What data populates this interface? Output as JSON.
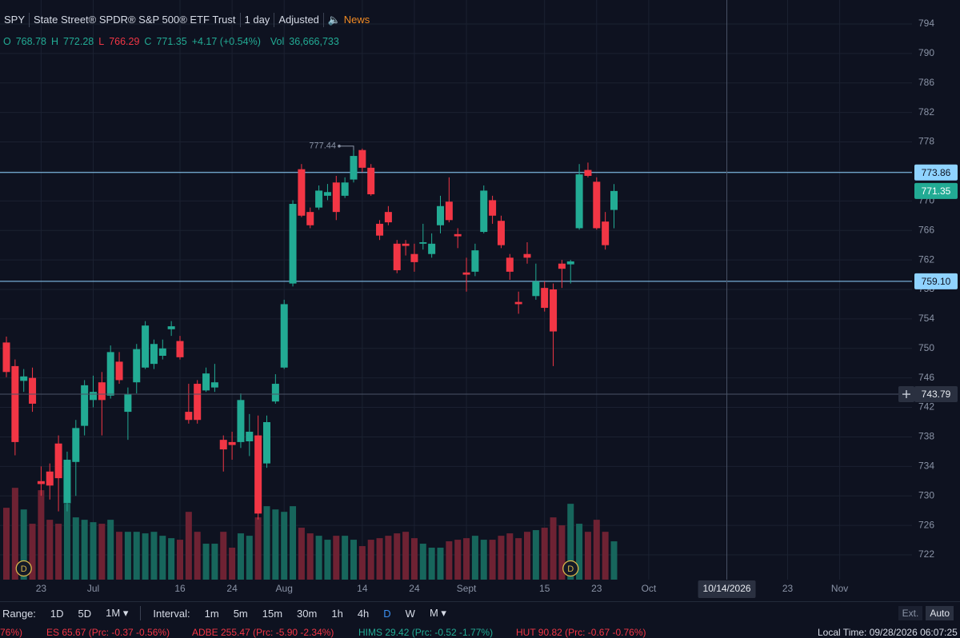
{
  "header": {
    "symbol": "SPY",
    "name": "State Street® SPDR® S&P 500® ETF Trust",
    "interval": "1 day",
    "adjustment": "Adjusted",
    "news": "News",
    "o": "O",
    "h": "H",
    "l": "L",
    "c": "C",
    "change": "+4.17 (+0.54%)",
    "vol": "Vol",
    "volume_label": "36,666,733"
  },
  "chart_data": {
    "type": "candlestick",
    "categories": [
      null,
      null,
      null,
      null,
      "23",
      null,
      null,
      null,
      null,
      null,
      "Jul",
      null,
      null,
      null,
      null,
      null,
      null,
      null,
      null,
      null,
      "16",
      null,
      null,
      null,
      null,
      null,
      "24",
      null,
      null,
      null,
      null,
      null,
      "Aug",
      null,
      null,
      null,
      null,
      null,
      null,
      null,
      null,
      "14",
      null,
      null,
      null,
      null,
      null,
      "24",
      null,
      null,
      null,
      null,
      null,
      "Sept",
      null,
      null,
      null,
      null,
      null,
      null,
      null,
      null,
      "15",
      null,
      null,
      null,
      null,
      null,
      "23",
      null,
      null,
      null,
      null,
      null,
      "Oct",
      null,
      null,
      null,
      null,
      null,
      null,
      null,
      null,
      "10/14/2026",
      null,
      null,
      null,
      null,
      null,
      null,
      "23",
      null,
      null,
      null,
      null,
      null,
      "Nov",
      null,
      null,
      null,
      null,
      null,
      null,
      null
    ],
    "open": [
      750.8,
      747.6,
      745.6,
      746.0,
      732.0,
      733.3,
      737.1,
      729.0,
      734.6,
      739.5,
      743.0,
      745.4,
      743.6,
      748.2,
      741.4,
      745.4,
      747.4,
      747.9,
      749.0,
      752.6,
      751.0,
      741.4,
      745.2,
      744.3,
      744.7,
      737.6,
      737.3,
      737.3,
      737.4,
      738.2,
      734.4,
      742.8,
      747.4,
      758.8,
      774.3,
      768.5,
      769.1,
      770.7,
      772.5,
      770.7,
      772.9,
      776.9,
      774.5,
      766.9,
      768.5,
      764.2,
      764.2,
      762.8,
      764.2,
      762.8,
      766.7,
      769.9,
      765.5,
      760.3,
      760.4,
      765.8,
      770.1,
      767.3,
      762.3,
      756.3,
      762.8,
      757.1,
      758.2,
      758.0,
      761.5,
      761.4,
      766.3,
      774.2,
      772.6,
      767.2,
      768.78,
      null,
      null,
      null,
      null,
      null,
      null,
      null,
      null,
      null,
      null,
      null,
      null,
      null,
      null,
      null,
      null,
      null,
      null,
      null,
      null,
      null,
      null,
      null,
      null,
      null,
      null,
      null,
      null,
      null,
      null,
      null,
      null,
      null
    ],
    "high": [
      751.6,
      748.5,
      747.2,
      747.4,
      734.0,
      734.4,
      738.2,
      736.0,
      740.3,
      745.7,
      746.3,
      746.8,
      750.4,
      749.5,
      744.7,
      750.6,
      753.7,
      751.2,
      751.2,
      753.7,
      751.7,
      745.2,
      745.7,
      747.4,
      747.9,
      738.2,
      738.7,
      743.9,
      741.1,
      740.9,
      740.9,
      746.5,
      756.6,
      770.1,
      775.0,
      769.1,
      772.1,
      772.3,
      773.4,
      773.2,
      777.44,
      777.1,
      775.0,
      767.4,
      769.3,
      764.7,
      764.7,
      764.2,
      766.9,
      765.6,
      770.7,
      773.2,
      766.3,
      762.3,
      764.2,
      772.1,
      770.7,
      768.0,
      762.8,
      757.7,
      764.4,
      761.5,
      759.1,
      758.8,
      762.0,
      762.0,
      775.0,
      775.2,
      773.2,
      768.5,
      772.28,
      null,
      null,
      null,
      null,
      null,
      null,
      null,
      null,
      null,
      null,
      null,
      null,
      null,
      null,
      null,
      null,
      null,
      null,
      null,
      null,
      null,
      null,
      null,
      null,
      null,
      null,
      null,
      null,
      null,
      null,
      null,
      null,
      null
    ],
    "low": [
      746.1,
      735.5,
      744.1,
      741.4,
      730.0,
      729.5,
      727.9,
      727.9,
      730.0,
      738.2,
      742.0,
      738.2,
      743.2,
      745.2,
      737.6,
      743.9,
      747.2,
      747.2,
      748.5,
      751.7,
      748.5,
      739.8,
      739.8,
      744.1,
      744.1,
      733.3,
      734.9,
      736.5,
      735.4,
      726.8,
      733.8,
      742.5,
      747.2,
      758.4,
      767.8,
      766.3,
      768.8,
      770.1,
      767.4,
      770.4,
      772.5,
      773.9,
      770.7,
      764.7,
      766.7,
      760.2,
      762.6,
      760.4,
      763.4,
      762.3,
      765.6,
      767.1,
      763.6,
      757.7,
      759.8,
      765.6,
      766.9,
      763.6,
      759.3,
      754.7,
      761.5,
      756.6,
      755.0,
      747.6,
      758.2,
      758.8,
      766.1,
      773.2,
      766.1,
      763.4,
      766.29,
      null,
      null,
      null,
      null,
      null,
      null,
      null,
      null,
      null,
      null,
      null,
      null,
      null,
      null,
      null,
      null,
      null,
      null,
      null,
      null,
      null,
      null,
      null,
      null,
      null,
      null,
      null,
      null,
      null,
      null,
      null,
      null,
      null
    ],
    "close": [
      746.8,
      737.3,
      746.2,
      742.5,
      731.6,
      731.4,
      732.4,
      734.9,
      739.2,
      745.0,
      744.1,
      743.0,
      749.5,
      745.7,
      743.8,
      749.9,
      753.1,
      750.6,
      750.0,
      753.0,
      748.8,
      740.3,
      740.3,
      746.6,
      745.4,
      736.3,
      736.9,
      743.0,
      738.7,
      727.6,
      740.0,
      745.2,
      756.0,
      769.6,
      768.0,
      766.7,
      771.4,
      771.2,
      768.5,
      772.5,
      776.1,
      774.5,
      770.9,
      765.3,
      767.1,
      760.6,
      763.9,
      761.7,
      764.4,
      764.2,
      769.3,
      767.4,
      765.2,
      760.0,
      763.3,
      771.4,
      768.0,
      764.0,
      760.4,
      756.0,
      762.3,
      759.1,
      755.5,
      752.3,
      760.8,
      761.8,
      773.6,
      773.4,
      766.3,
      764.0,
      771.35,
      null,
      null,
      null,
      null,
      null,
      null,
      null,
      null,
      null,
      null,
      null,
      null,
      null,
      null,
      null,
      null,
      null,
      null,
      null,
      null,
      null,
      null,
      null,
      null,
      null,
      null,
      null,
      null,
      null,
      null,
      null,
      null,
      null
    ],
    "volume": [
      68800000,
      87900000,
      67200000,
      53500000,
      85600000,
      57300000,
      53500000,
      72600000,
      59600000,
      57300000,
      55000000,
      53500000,
      57300000,
      45800000,
      45800000,
      45800000,
      44300000,
      45800000,
      42000000,
      39700000,
      38200000,
      64900000,
      45800000,
      34400000,
      34400000,
      45800000,
      30600000,
      44300000,
      42000000,
      59600000,
      70300000,
      67200000,
      64900000,
      70300000,
      49700000,
      44300000,
      42000000,
      38200000,
      42000000,
      42000000,
      38200000,
      32100000,
      38200000,
      39700000,
      42000000,
      44300000,
      45800000,
      39700000,
      34400000,
      30600000,
      30600000,
      36700000,
      38200000,
      39700000,
      42000000,
      38200000,
      38200000,
      42000000,
      44300000,
      39700000,
      45800000,
      47400000,
      49700000,
      59600000,
      52000000,
      72600000,
      53500000,
      45800000,
      57300000,
      45800000,
      36666733,
      null,
      null,
      null,
      null,
      null,
      null,
      null,
      null,
      null,
      null,
      null,
      null,
      null,
      null,
      null,
      null,
      null,
      null,
      null,
      null,
      null,
      null,
      null,
      null,
      null,
      null,
      null,
      null,
      null,
      null,
      null,
      null,
      null
    ],
    "ylim": [
      718.64,
      797.25
    ],
    "yticks": [
      722,
      726,
      730,
      734,
      738,
      742,
      746,
      750,
      754,
      758,
      762,
      766,
      770,
      774,
      778,
      782,
      786,
      790,
      794
    ],
    "volume_lim": [
      0,
      150000000
    ],
    "up_color": "#22ab94",
    "down_color": "#f23645",
    "up_volume_color": "#17665c",
    "down_volume_color": "#6e2233",
    "grid": true,
    "price_lines": [
      773.86,
      {
        "value": 759.1,
        "label": "759.10"
      }
    ],
    "crosshair": {
      "y": 743.79,
      "x": "10/14/2026"
    },
    "dividends": [
      {
        "label": "D",
        "slot": 2
      },
      {
        "label": "D",
        "slot": 65
      }
    ]
  },
  "toolbar": {
    "range": "Range:",
    "ranges": [
      "1D",
      "5D",
      "1M ▾"
    ],
    "interval": "Interval:",
    "intervals": [
      "1m",
      "5m",
      "15m",
      "30m",
      "1h",
      "4h",
      "D",
      "W",
      "M ▾"
    ],
    "ext": "Ext.",
    "auto": "Auto"
  },
  "ticker_strip": [
    "76%)",
    "ES 65.67 (Prc: -0.37 -0.56%)",
    "ADBE 255.47 (Prc: -5.90 -2.34%)",
    "HIMS 29.42 (Prc: -0.52 -1.77%)",
    "HUT 90.82 (Prc: -0.67 -0.76%)",
    "Local Time: 09/28/2026 06:07:25"
  ]
}
